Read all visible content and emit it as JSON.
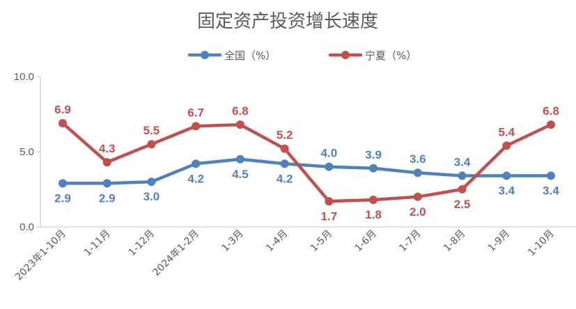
{
  "chart_data": {
    "type": "line",
    "title": "固定资产投资增长速度",
    "categories": [
      "2023年1-10月",
      "1-11月",
      "1-12月",
      "2024年1-2月",
      "1-3月",
      "1-4月",
      "1-5月",
      "1-6月",
      "1-7月",
      "1-8月",
      "1-9月",
      "1-10月"
    ],
    "series": [
      {
        "name": "全国（%）",
        "color": "#4F81BD",
        "values": [
          2.9,
          2.9,
          3.0,
          4.2,
          4.5,
          4.2,
          4.0,
          3.9,
          3.6,
          3.4,
          3.4,
          3.4
        ],
        "labels": [
          "2.9",
          "2.9",
          "3.0",
          "4.2",
          "4.5",
          "4.2",
          "4.0",
          "3.9",
          "3.6",
          "3.4",
          "3.4",
          "3.4"
        ],
        "label_positions": [
          "below",
          "below",
          "below",
          "below",
          "below",
          "below",
          "above",
          "above",
          "above",
          "above",
          "below",
          "below"
        ]
      },
      {
        "name": "宁夏（%）",
        "color": "#C0504D",
        "values": [
          6.9,
          4.3,
          5.5,
          6.7,
          6.8,
          5.2,
          1.7,
          1.8,
          2.0,
          2.5,
          5.4,
          6.8
        ],
        "labels": [
          "6.9",
          "4.3",
          "5.5",
          "6.7",
          "6.8",
          "5.2",
          "1.7",
          "1.8",
          "2.0",
          "2.5",
          "5.4",
          "6.8"
        ],
        "label_positions": [
          "above",
          "above",
          "above",
          "above",
          "above",
          "above",
          "below",
          "below",
          "below",
          "below",
          "above",
          "above"
        ]
      }
    ],
    "y_ticks": [
      "0.0",
      "5.0",
      "10.0"
    ],
    "ylim": [
      0,
      10
    ],
    "grid": false,
    "legend_position": "top-center"
  }
}
